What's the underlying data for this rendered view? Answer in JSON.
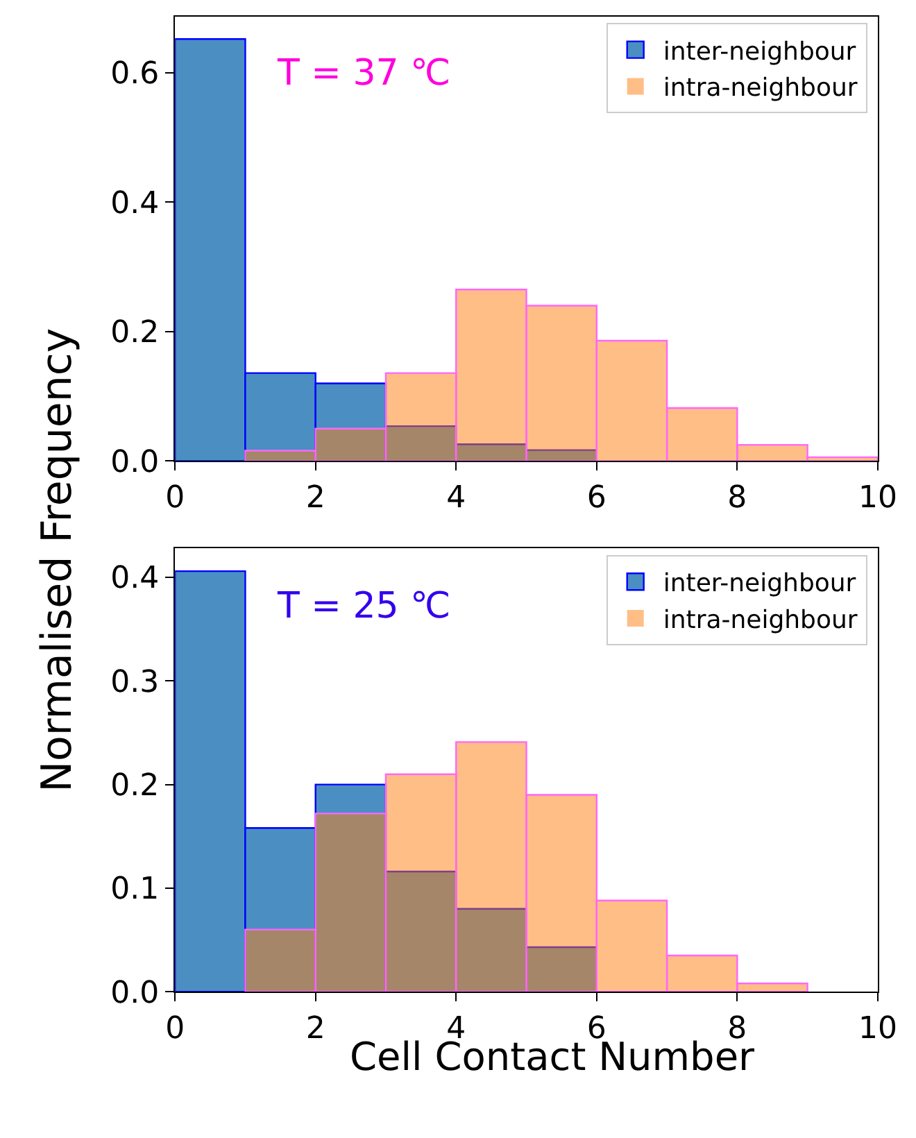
{
  "chart_data": [
    {
      "type": "histogram",
      "bins": [
        0,
        1,
        2,
        3,
        4,
        5,
        6,
        7,
        8,
        9,
        10
      ],
      "ylabel": "Normalised Frequency",
      "series": [
        {
          "name": "inter-neighbour",
          "color": "#4b8fc2",
          "values": [
            0.652,
            0.136,
            0.12,
            0.054,
            0.026,
            0.017,
            0,
            0,
            0,
            0
          ]
        },
        {
          "name": "intra-neighbour",
          "color": "#ffbe86",
          "values": [
            0,
            0.016,
            0.05,
            0.136,
            0.265,
            0.24,
            0.186,
            0.082,
            0.025,
            0.006
          ]
        }
      ],
      "xlim": [
        0,
        10
      ],
      "xticks": [
        0,
        2,
        4,
        6,
        8,
        10
      ],
      "ylim": [
        0,
        0.687
      ],
      "yticks": [
        {
          "value": 0,
          "label": "0.0"
        },
        0.2,
        0.4,
        0.6
      ],
      "annotations": [
        "T = 37 ℃"
      ],
      "legend": "top right",
      "grid": false
    },
    {
      "type": "histogram",
      "bins": [
        0,
        1,
        2,
        3,
        4,
        5,
        6,
        7,
        8,
        9,
        10
      ],
      "xlabel": "Cell Contact Number",
      "series": [
        {
          "name": "inter-neighbour",
          "color": "#4b8fc2",
          "values": [
            0.406,
            0.158,
            0.2,
            0.116,
            0.08,
            0.043,
            0,
            0,
            0,
            0
          ]
        },
        {
          "name": "intra-neighbour",
          "color": "#ffbe86",
          "values": [
            0,
            0.06,
            0.172,
            0.21,
            0.241,
            0.19,
            0.088,
            0.035,
            0.008,
            0
          ]
        }
      ],
      "xlim": [
        0,
        10
      ],
      "xticks": [
        0,
        2,
        4,
        6,
        8,
        10
      ],
      "ylim": [
        0,
        0.428
      ],
      "yticks": [
        {
          "value": 0,
          "label": "0.0"
        },
        0.1,
        0.2,
        0.3,
        0.4
      ],
      "annotations": [
        "T = 25 ℃"
      ],
      "legend": "top right",
      "grid": false
    }
  ]
}
